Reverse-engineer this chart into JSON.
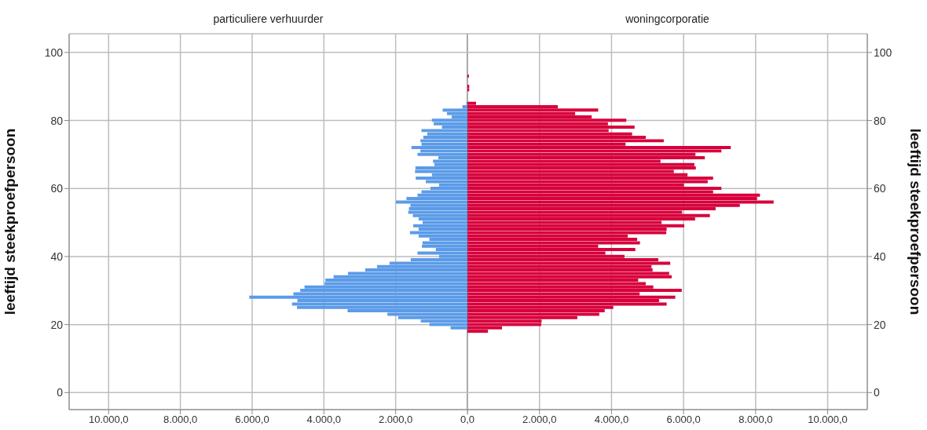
{
  "chart_data": [
    {
      "type": "bar",
      "orientation": "horizontal",
      "title": "particuliere verhuurder",
      "ylabel": "leeftijd steekproefpersoon",
      "x": [
        19,
        20,
        21,
        22,
        23,
        24,
        25,
        26,
        27,
        28,
        29,
        30,
        31,
        32,
        33,
        34,
        35,
        36,
        37,
        38,
        39,
        40,
        41,
        42,
        43,
        44,
        45,
        46,
        47,
        48,
        49,
        50,
        51,
        52,
        53,
        54,
        55,
        56,
        57,
        58,
        59,
        60,
        61,
        62,
        63,
        64,
        65,
        66,
        67,
        68,
        69,
        70,
        71,
        72,
        73,
        74,
        75,
        76,
        77,
        78,
        79,
        80,
        81,
        82,
        83,
        84,
        85
      ],
      "series": [
        {
          "color": "#5b9be8",
          "values": [
            470,
            1060,
            1300,
            1930,
            2230,
            3340,
            4750,
            4890,
            4740,
            6080,
            4850,
            4660,
            4540,
            3980,
            3960,
            3730,
            3330,
            2850,
            2520,
            2170,
            1580,
            790,
            1390,
            880,
            1270,
            1250,
            1060,
            1360,
            1600,
            1360,
            1510,
            1250,
            1360,
            1520,
            1650,
            1630,
            1590,
            1990,
            1700,
            1390,
            1280,
            1030,
            790,
            1160,
            1440,
            990,
            1460,
            1450,
            920,
            960,
            810,
            1390,
            1310,
            1560,
            1280,
            1310,
            1230,
            1120,
            1280,
            710,
            940,
            990,
            440,
            570,
            690,
            140,
            30
          ]
        }
      ],
      "xlim": [
        11100,
        0
      ],
      "xticks": [
        {
          "value": 10000,
          "label": "10.000,0"
        },
        {
          "value": 8000,
          "label": "8.000,0"
        },
        {
          "value": 6000,
          "label": "6.000,0"
        },
        {
          "value": 4000,
          "label": "4.000,0"
        },
        {
          "value": 2000,
          "label": "2.000,0"
        },
        {
          "value": 0,
          "label": "0,0"
        }
      ],
      "ylim": [
        -5,
        105.5
      ],
      "yticks": [
        0,
        20,
        40,
        60,
        80,
        100
      ],
      "grid": true
    },
    {
      "type": "bar",
      "orientation": "horizontal",
      "title": "woningcorporatie",
      "ylabel": "leeftijd steekproefpersoon",
      "x": [
        18,
        19,
        20,
        21,
        22,
        23,
        24,
        25,
        26,
        27,
        28,
        29,
        30,
        31,
        32,
        33,
        34,
        35,
        36,
        37,
        38,
        39,
        40,
        41,
        42,
        43,
        44,
        45,
        46,
        47,
        48,
        49,
        50,
        51,
        52,
        53,
        54,
        55,
        56,
        57,
        58,
        59,
        60,
        61,
        62,
        63,
        64,
        65,
        66,
        67,
        68,
        69,
        70,
        71,
        72,
        73,
        74,
        75,
        76,
        77,
        78,
        79,
        80,
        81,
        82,
        83,
        84,
        85,
        89,
        90,
        93
      ],
      "series": [
        {
          "color": "#d7003c",
          "values": [
            570,
            960,
            2050,
            2060,
            3050,
            3660,
            3810,
            4050,
            5530,
            5320,
            5770,
            4780,
            5950,
            5160,
            4950,
            4740,
            5670,
            5600,
            5140,
            5110,
            5630,
            5300,
            4360,
            3830,
            4660,
            3630,
            4790,
            4710,
            4450,
            5520,
            5530,
            6020,
            5390,
            6320,
            6730,
            5960,
            6890,
            7560,
            8500,
            8040,
            8120,
            6820,
            7050,
            6010,
            6670,
            6820,
            6110,
            5730,
            6340,
            6300,
            5360,
            6590,
            6330,
            7050,
            7310,
            4390,
            5450,
            4950,
            4570,
            3920,
            4640,
            3900,
            4410,
            3450,
            2990,
            3630,
            2510,
            240,
            50,
            50,
            40
          ]
        }
      ],
      "xlim": [
        0,
        11100
      ],
      "xticks": [
        {
          "value": 0,
          "label": null
        },
        {
          "value": 2000,
          "label": "2.000,0"
        },
        {
          "value": 4000,
          "label": "4.000,0"
        },
        {
          "value": 6000,
          "label": "6.000,0"
        },
        {
          "value": 8000,
          "label": "8.000,0"
        },
        {
          "value": 10000,
          "label": "10.000,0"
        }
      ],
      "ylim": [
        -5,
        105.5
      ],
      "yticks": [
        0,
        20,
        40,
        60,
        80,
        100
      ],
      "grid": true
    }
  ]
}
